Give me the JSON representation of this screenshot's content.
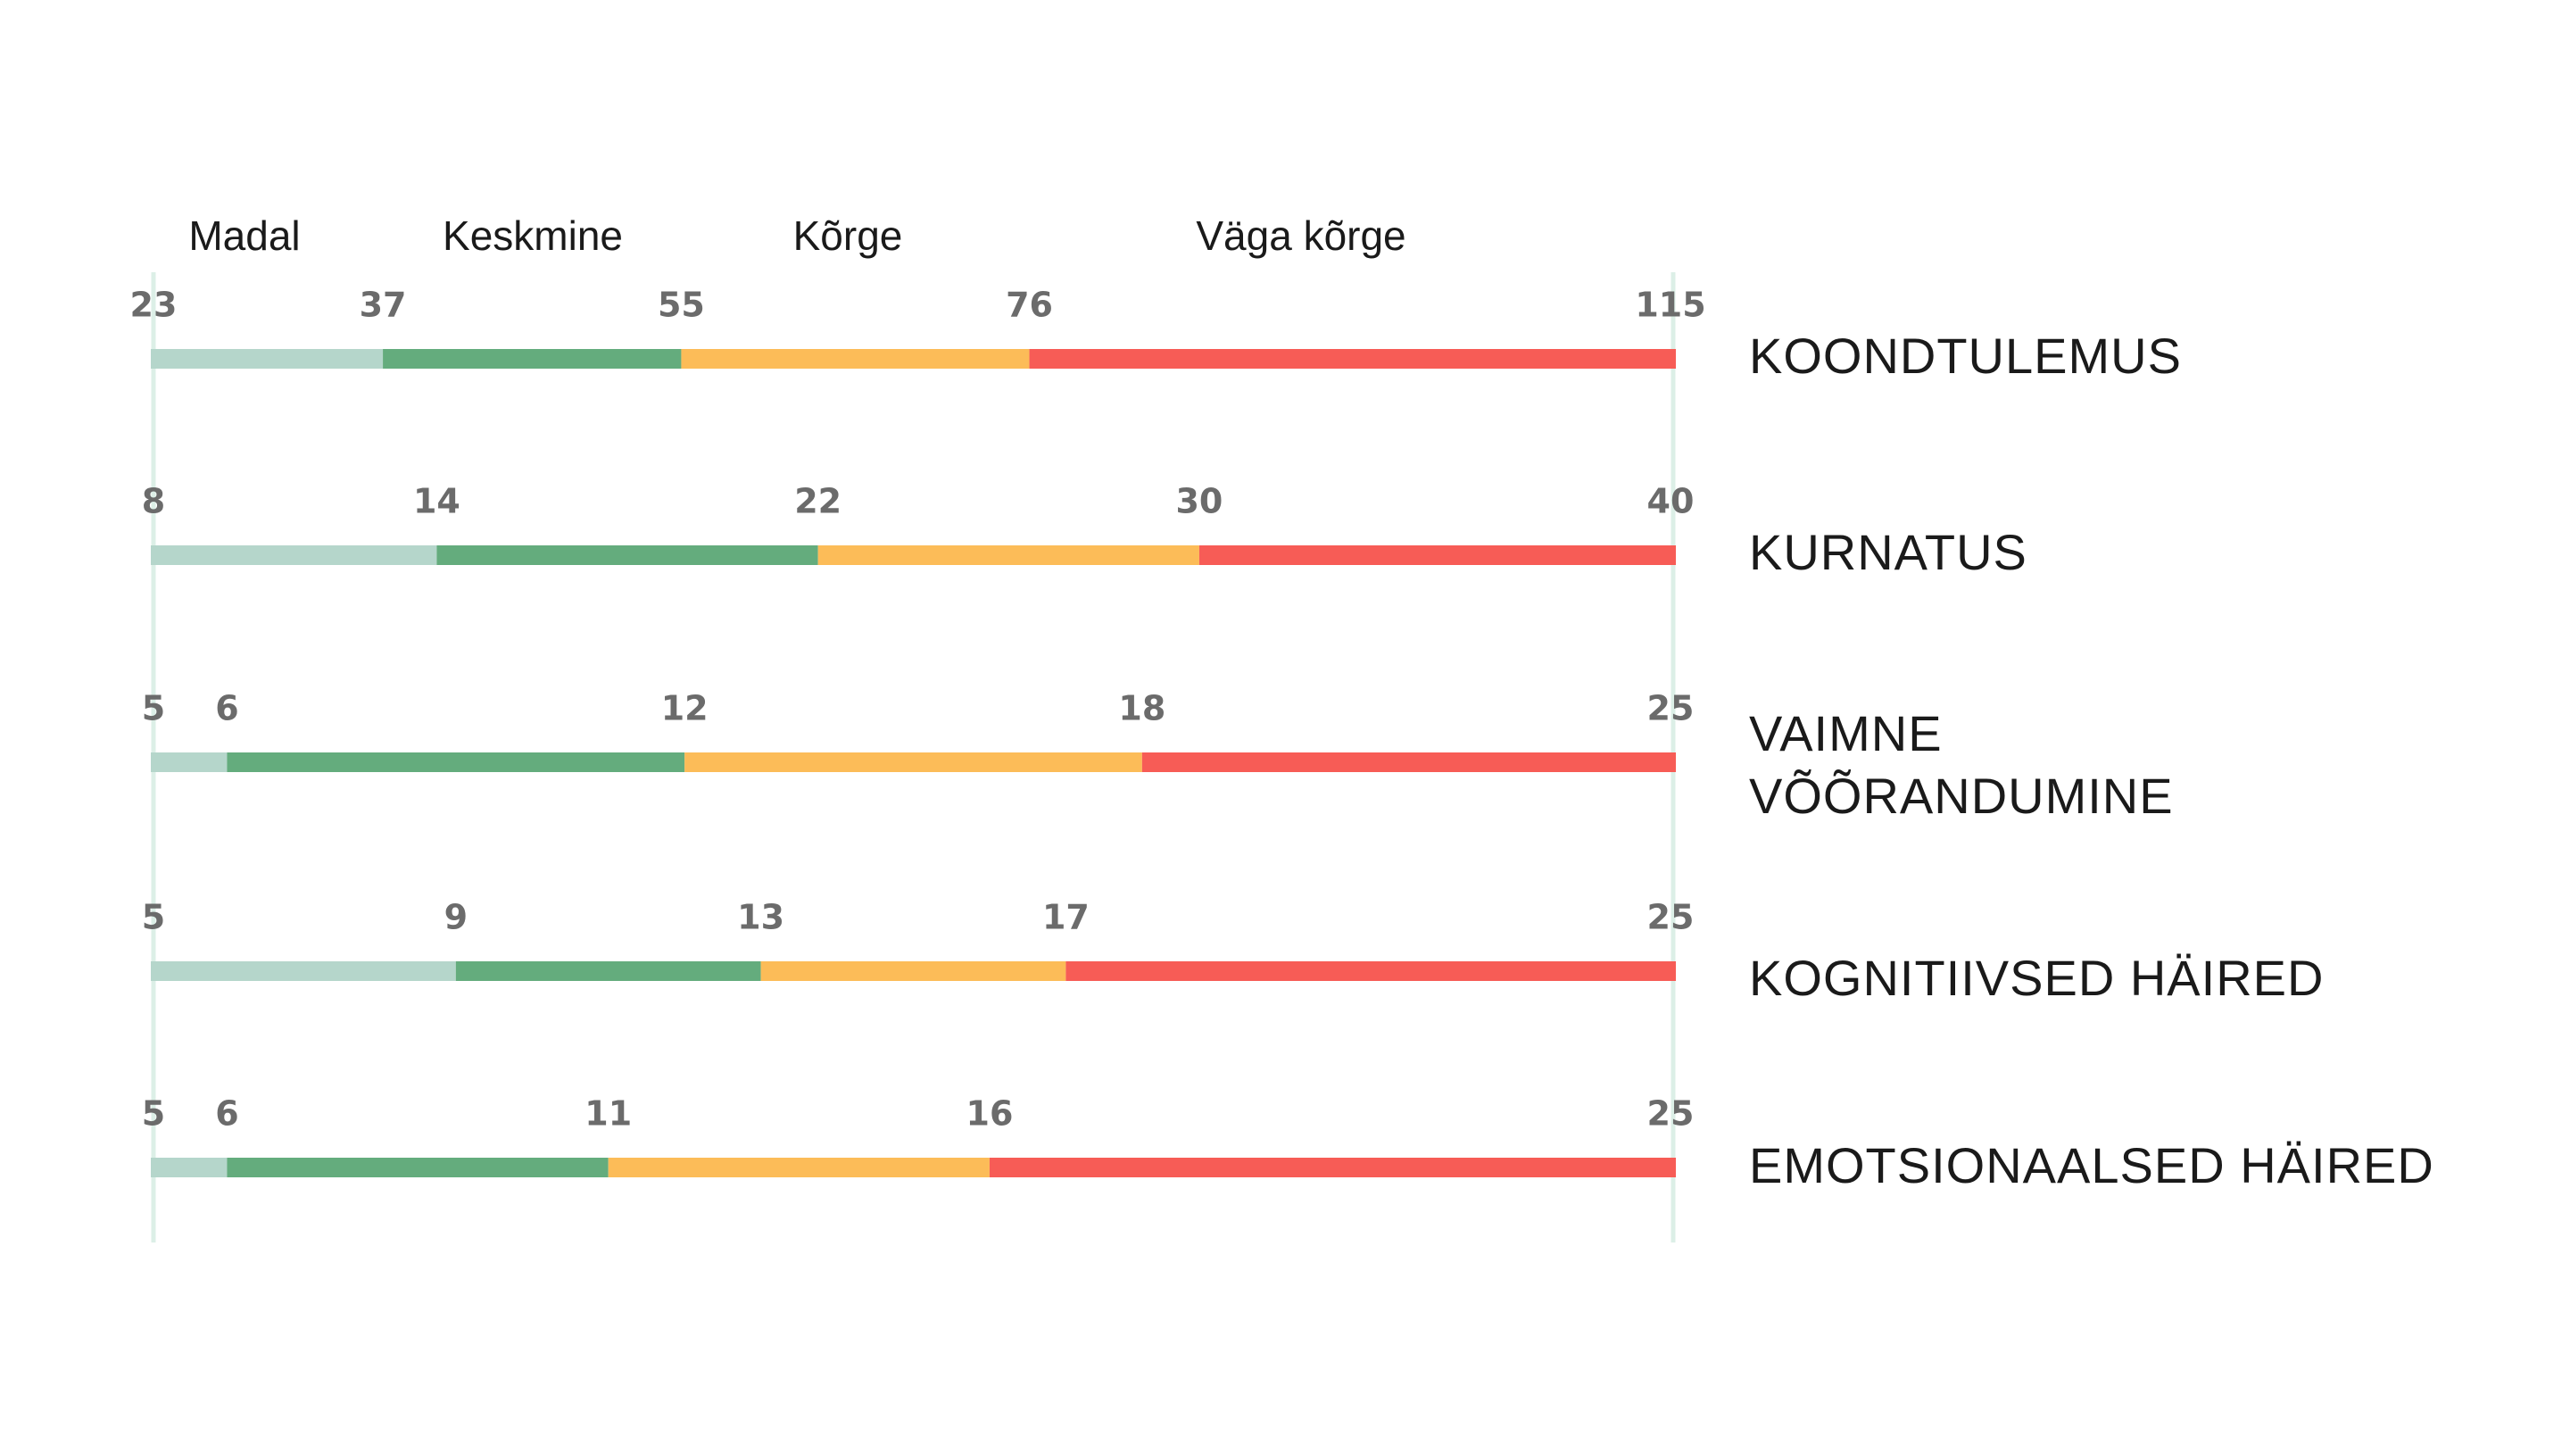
{
  "chart_data": {
    "type": "bar",
    "legend": [
      "Madal",
      "Keskmine",
      "Kõrge",
      "Väga kõrge"
    ],
    "colors": {
      "Madal": "#b5d6cb",
      "Keskmine": "#64ac7d",
      "Kõrge": "#fcbc58",
      "Väga kõrge": "#f75c56",
      "boundary": "#dcefe7"
    },
    "rows": [
      {
        "label": [
          "KOONDTULEMUS"
        ],
        "thresholds": [
          23,
          37,
          55,
          76,
          115
        ]
      },
      {
        "label": [
          "KURNATUS"
        ],
        "thresholds": [
          8,
          14,
          22,
          30,
          40
        ]
      },
      {
        "label": [
          "VAIMNE",
          "VÕÕRANDUMINE"
        ],
        "thresholds": [
          5,
          6,
          12,
          18,
          25
        ]
      },
      {
        "label": [
          "KOGNITIIVSED HÄIRED"
        ],
        "thresholds": [
          5,
          9,
          13,
          17,
          25
        ]
      },
      {
        "label": [
          "EMOTSIONAALSED HÄIRED"
        ],
        "thresholds": [
          5,
          6,
          11,
          16,
          25
        ]
      }
    ]
  }
}
